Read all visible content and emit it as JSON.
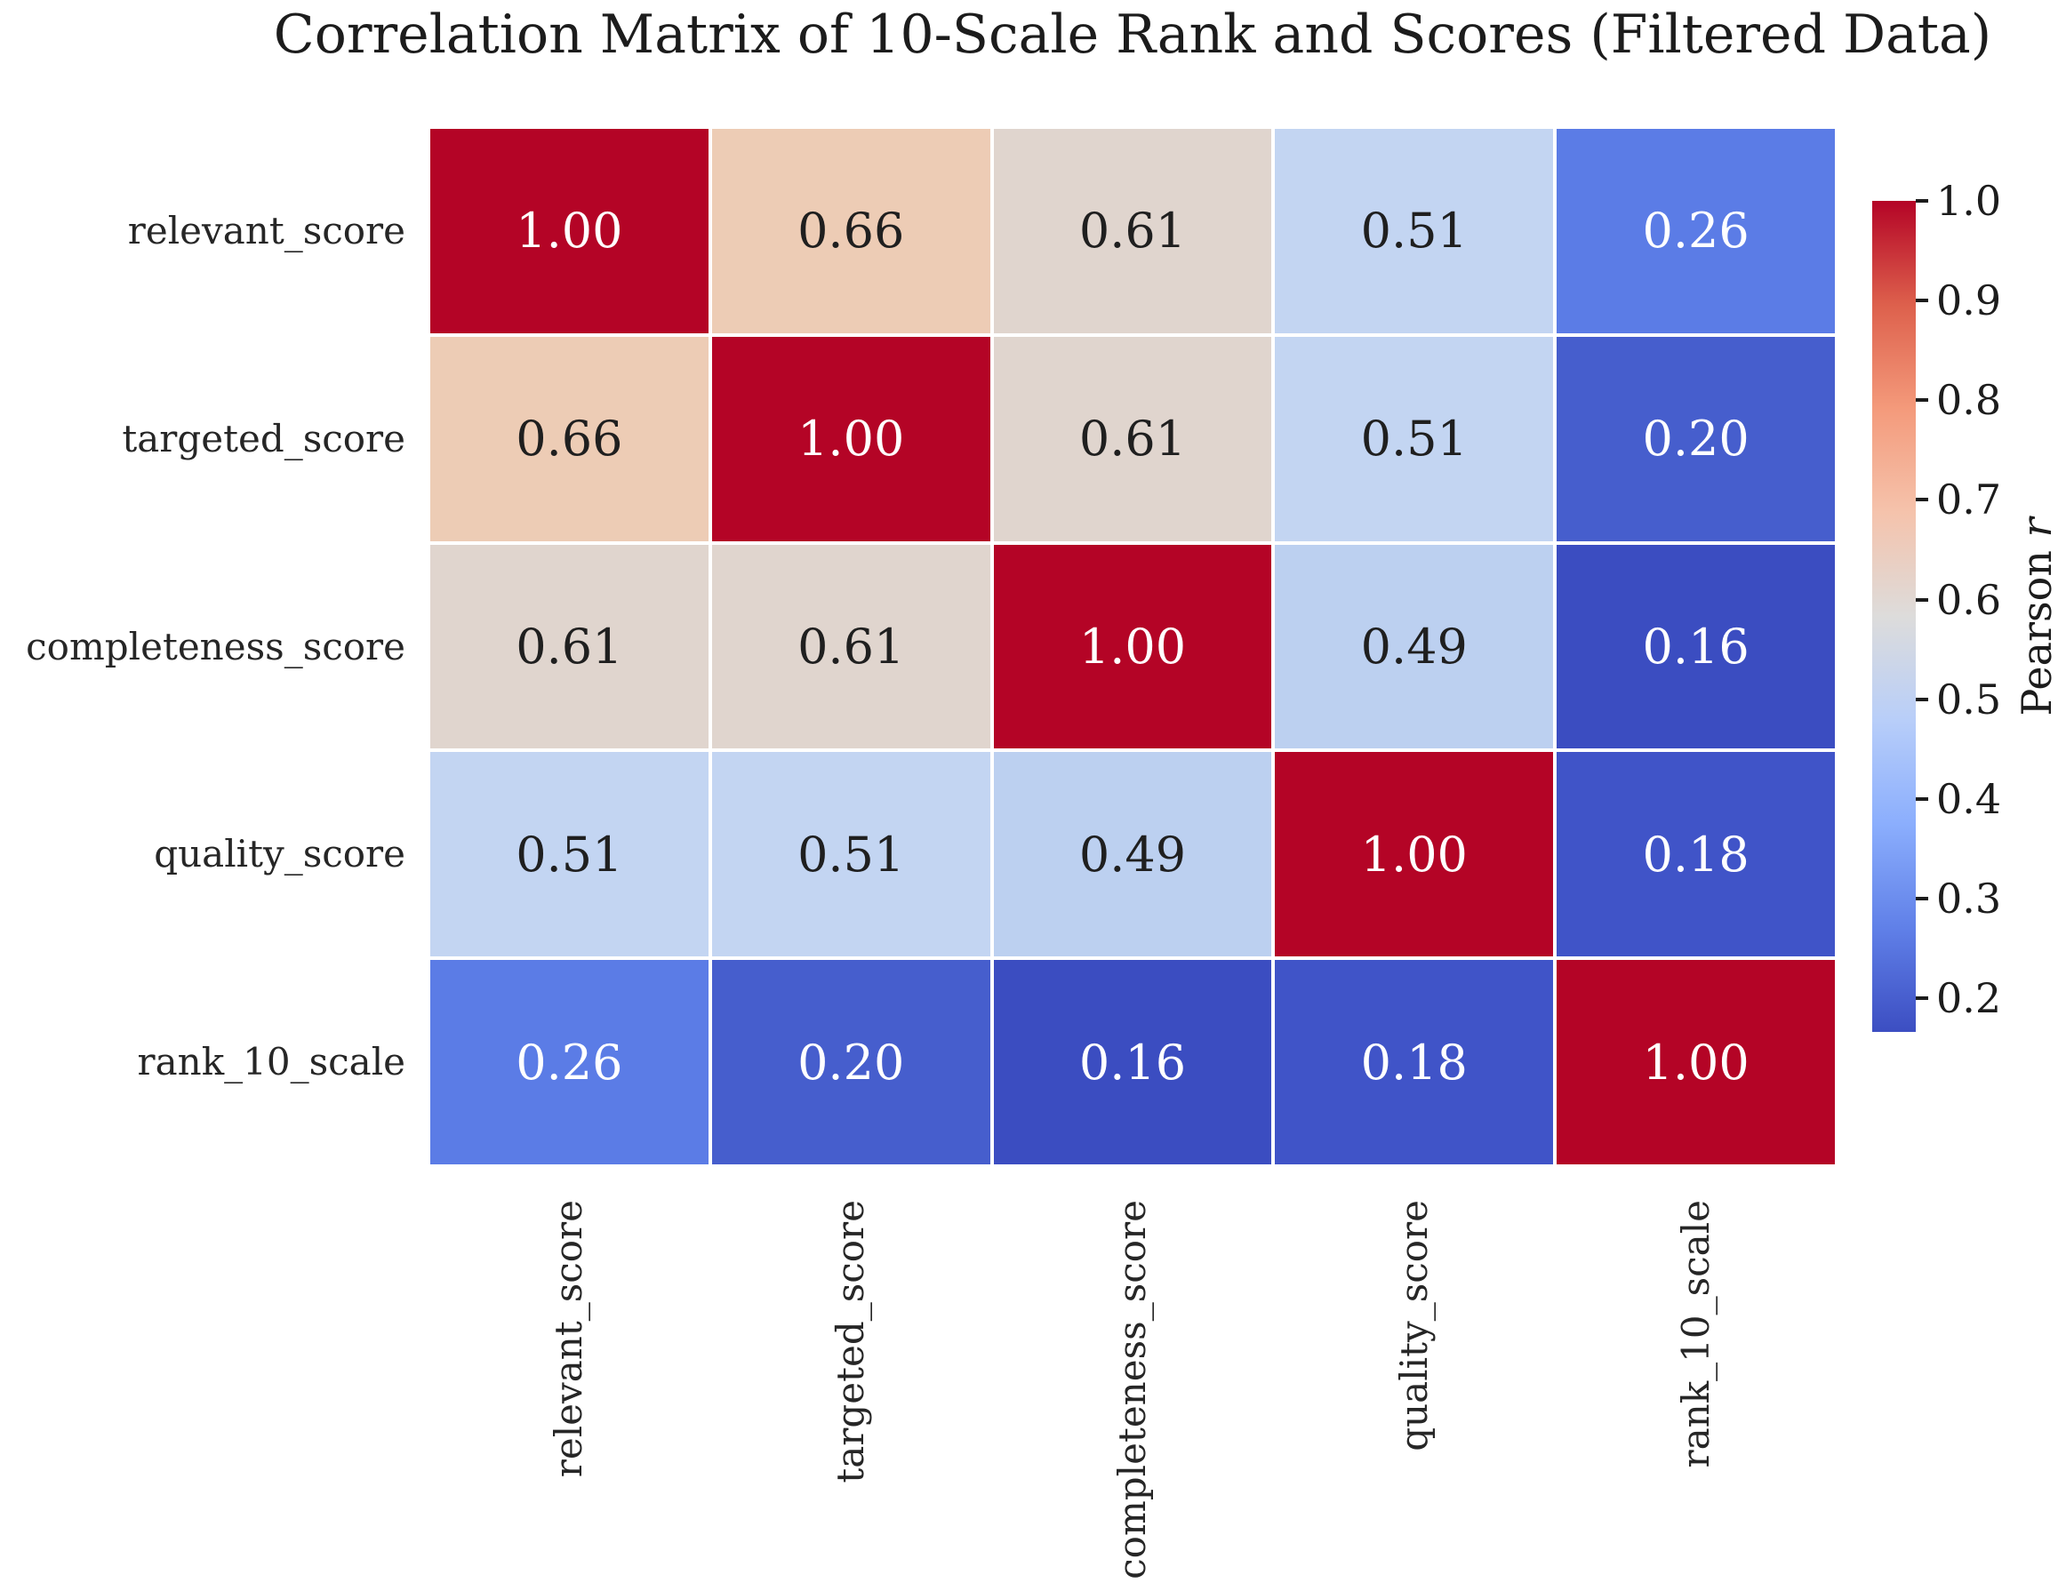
{
  "title": "Correlation Matrix of 10-Scale Rank and Scores (Filtered Data)",
  "chart_data": {
    "type": "heatmap",
    "title": "Correlation Matrix of 10-Scale Rank and Scores (Filtered Data)",
    "variables": [
      "relevant_score",
      "targeted_score",
      "completeness_score",
      "quality_score",
      "rank_10_scale"
    ],
    "x_tick_labels": [
      "relevant_score",
      "targeted_score",
      "completeness_score",
      "quality_score",
      "rank_10_scale"
    ],
    "y_tick_labels": [
      "relevant_score",
      "targeted_score",
      "completeness_score",
      "quality_score",
      "rank_10_scale"
    ],
    "matrix": [
      [
        1.0,
        0.66,
        0.61,
        0.51,
        0.26
      ],
      [
        0.66,
        1.0,
        0.61,
        0.51,
        0.2
      ],
      [
        0.61,
        0.61,
        1.0,
        0.49,
        0.16
      ],
      [
        0.51,
        0.51,
        0.49,
        1.0,
        0.18
      ],
      [
        0.26,
        0.2,
        0.16,
        0.18,
        1.0
      ]
    ],
    "colormap": "coolwarm",
    "vmin": 0.16,
    "vmax": 1.0,
    "grid_line_color": "#ffffff",
    "cell_value_colors": {
      "1.00": "#b40426",
      "0.66": "#edccb5",
      "0.61": "#e0d5ce",
      "0.51": "#c3d5f2",
      "0.49": "#bcd0f0",
      "0.26": "#5b7ce6",
      "0.20": "#465ecd",
      "0.18": "#4054c8",
      "0.16": "#3b4dc1"
    },
    "white_text_values": [
      "1.00",
      "0.26",
      "0.20",
      "0.18",
      "0.16"
    ],
    "annot_color_dark": "#1f1f1f",
    "annot_color_light": "#ffffff",
    "colorbar": {
      "label": "Pearson r",
      "label_prefix": "Pearson ",
      "label_italic_suffix": "r",
      "position": "right",
      "tick_labels": [
        "1.0",
        "0.9",
        "0.8",
        "0.7",
        "0.6",
        "0.5",
        "0.4",
        "0.3",
        "0.2"
      ],
      "gradient_top_to_bottom": [
        "#b40426",
        "#dd604c",
        "#f49a7b",
        "#f5c3ac",
        "#dddcdb",
        "#b8cef9",
        "#8baefd",
        "#6080e8",
        "#3c4ec2"
      ]
    }
  }
}
